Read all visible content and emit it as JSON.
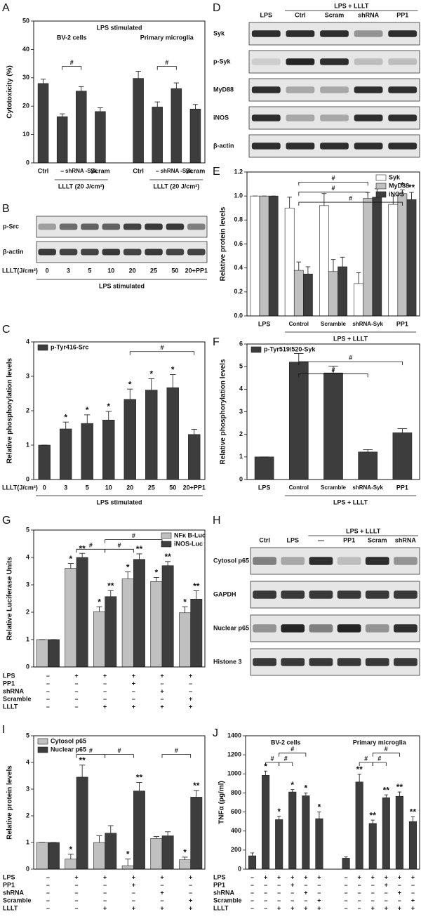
{
  "chart_data": [
    {
      "panel": "A",
      "type": "bar",
      "title": "LPS stimulated",
      "y_label": "Cytotoxicity (%)",
      "ylim": [
        0,
        50
      ],
      "yticks": [
        0,
        10,
        20,
        30,
        40,
        50
      ],
      "groups": [
        "BV-2 cells",
        "Primary microglia"
      ],
      "categories": [
        "Ctrl",
        "–",
        "shRNA -Syk",
        "Scram",
        "Ctrl",
        "–",
        "shRNA -Syk",
        "Scram"
      ],
      "group_notes": [
        "LLLT (20 J/cm²)",
        "LLLT (20 J/cm²)"
      ],
      "series": [
        {
          "color": "#3d3d3d",
          "values": [
            28,
            16.3,
            25.3,
            18.1,
            29.8,
            19.7,
            26.2,
            19.0
          ],
          "errors": [
            1.5,
            1.0,
            1.6,
            1.3,
            2.5,
            1.8,
            2.0,
            1.6
          ]
        }
      ],
      "annotations": [
        "#",
        "#"
      ]
    },
    {
      "panel": "B",
      "type": "blot",
      "rows": [
        "p-Src",
        "β-actin"
      ],
      "x_prefix": "LLLT(J/cm²)",
      "lanes": [
        "0",
        "3",
        "5",
        "10",
        "20",
        "25",
        "50",
        "20+PP1"
      ],
      "x_label": "LPS stimulated"
    },
    {
      "panel": "C",
      "type": "bar",
      "y_label": "Relative phosphorylation levels",
      "ylim": [
        0,
        4
      ],
      "yticks": [
        0,
        1,
        2,
        3,
        4
      ],
      "legend": "upper left",
      "x_prefix": "LLLT(J/cm²)",
      "categories": [
        "0",
        "3",
        "5",
        "10",
        "20",
        "25",
        "50",
        "20+PP1"
      ],
      "x_label": "LPS stimulated",
      "series": [
        {
          "name": "p-Tyr416-Src",
          "color": "#3d3d3d",
          "values": [
            1,
            1.47,
            1.63,
            1.73,
            2.33,
            2.6,
            2.67,
            1.31
          ],
          "errors": [
            0,
            0.2,
            0.25,
            0.25,
            0.3,
            0.33,
            0.38,
            0.15
          ],
          "stars": [
            null,
            "*",
            "*",
            "*",
            "*",
            "*",
            "*",
            null
          ]
        }
      ],
      "annotations": [
        "#"
      ]
    },
    {
      "panel": "D",
      "type": "blot",
      "header": "LPS + LLLT",
      "lanes": [
        "LPS",
        "Ctrl",
        "Scram",
        "shRNA",
        "PP1"
      ],
      "rows": [
        "Syk",
        "p-Syk",
        "MyD88",
        "iNOS",
        "β-actin"
      ]
    },
    {
      "panel": "E",
      "type": "bar",
      "y_label": "Relative protein levels",
      "ylim": [
        0,
        1.2
      ],
      "yticks": [
        {
          "value": 0,
          "label": "0.0"
        },
        {
          "value": 0.2,
          "label": "0.2"
        },
        {
          "value": 0.4,
          "label": "0.4"
        },
        {
          "value": 0.6,
          "label": "0.6"
        },
        {
          "value": 0.8,
          "label": "0.8"
        },
        {
          "value": 1,
          "label": "1.0"
        },
        {
          "value": 1.2,
          "label": "1.2"
        }
      ],
      "legend": "upper right",
      "categories": [
        "LPS",
        "Control",
        "Scramble",
        "shRNA-Syk",
        "PP1"
      ],
      "x_label": "LPS + LLLT",
      "series": [
        {
          "name": "Syk",
          "color": "#ffffff",
          "values": [
            1,
            0.9,
            0.92,
            0.27,
            0.93
          ],
          "errors": [
            0,
            0.09,
            0.1,
            0.09,
            0.07
          ]
        },
        {
          "name": "MyD88",
          "color": "#c0c0c0",
          "values": [
            1,
            0.38,
            0.37,
            0.98,
            1.02
          ],
          "errors": [
            0,
            0.07,
            0.1,
            0.05,
            0.03
          ],
          "stars": [
            null,
            null,
            null,
            null,
            "*"
          ]
        },
        {
          "name": "iNOS",
          "color": "#3d3d3d",
          "values": [
            1,
            0.35,
            0.41,
            0.99,
            0.97
          ],
          "errors": [
            0,
            0.06,
            0.08,
            0.07,
            0.06
          ],
          "stars": [
            null,
            null,
            null,
            null,
            "**"
          ]
        }
      ],
      "annotations": [
        "#",
        "#",
        "#"
      ]
    },
    {
      "panel": "F",
      "type": "bar",
      "y_label": "Relative phosphorylation levels",
      "ylim": [
        0,
        6
      ],
      "yticks": [
        0,
        1,
        2,
        3,
        4,
        5,
        6
      ],
      "legend": "upper left",
      "categories": [
        "LPS",
        "Control",
        "Scramble",
        "shRNA-Syk",
        "PP1"
      ],
      "x_label": "LPS + LLLT",
      "series": [
        {
          "name": "p-Tyr519/520-Syk",
          "color": "#3d3d3d",
          "values": [
            1,
            5.2,
            4.72,
            1.22,
            2.07
          ],
          "errors": [
            0,
            0.38,
            0.3,
            0.1,
            0.18
          ]
        }
      ],
      "annotations": [
        "#",
        "#"
      ]
    },
    {
      "panel": "G",
      "type": "bar",
      "y_label": "Relative Luciferase Units",
      "ylim": [
        0,
        5
      ],
      "yticks": [
        0,
        1,
        2,
        3,
        4,
        5
      ],
      "legend": "upper right",
      "series": [
        {
          "name": "NFκ B-Luc",
          "color": "#c0c0c0",
          "values": [
            1,
            3.6,
            2.02,
            3.22,
            3.12,
            1.98
          ],
          "errors": [
            0,
            0.18,
            0.18,
            0.25,
            0.15,
            0.22
          ],
          "stars": [
            null,
            "*",
            "*",
            "*",
            "*",
            "*"
          ]
        },
        {
          "name": "iNOS-Luc",
          "color": "#3d3d3d",
          "values": [
            1,
            4.0,
            2.57,
            3.93,
            3.7,
            2.48
          ],
          "errors": [
            0,
            0.15,
            0.22,
            0.2,
            0.15,
            0.3
          ],
          "stars": [
            null,
            "**",
            "**",
            "**",
            "**",
            "**"
          ]
        }
      ],
      "conditions": [
        {
          "label": "LPS",
          "signs": [
            "–",
            "+",
            "+",
            "+",
            "+",
            "+"
          ]
        },
        {
          "label": "PP1",
          "signs": [
            "–",
            "–",
            "–",
            "+",
            "–",
            "–"
          ]
        },
        {
          "label": "shRNA",
          "signs": [
            "–",
            "–",
            "–",
            "–",
            "+",
            "–"
          ]
        },
        {
          "label": "Scramble",
          "signs": [
            "–",
            "–",
            "–",
            "–",
            "–",
            "+"
          ]
        },
        {
          "label": "LLLT",
          "signs": [
            "–",
            "–",
            "+",
            "+",
            "+",
            "+"
          ]
        }
      ],
      "annotations": [
        "#",
        "#",
        "#"
      ]
    },
    {
      "panel": "H",
      "type": "blot",
      "header": "LPS + LLLT",
      "lanes": [
        "Ctrl",
        "LPS",
        "—",
        "PP1",
        "Scram",
        "shRNA"
      ],
      "rows": [
        "Cytosol p65",
        "GAPDH",
        "Nuclear p65",
        "Histone 3"
      ]
    },
    {
      "panel": "I",
      "type": "bar",
      "y_label": "Relative protein levels",
      "ylim": [
        0,
        5
      ],
      "yticks": [
        0,
        1,
        2,
        3,
        4,
        5
      ],
      "legend": "upper left",
      "series": [
        {
          "name": "Cytosol p65",
          "color": "#c0c0c0",
          "values": [
            1,
            0.38,
            1.0,
            0.13,
            1.15,
            0.35
          ],
          "errors": [
            0,
            0.18,
            0.25,
            0.25,
            0.07,
            0.1
          ],
          "stars": [
            null,
            "*",
            null,
            "*",
            null,
            "*"
          ]
        },
        {
          "name": "Nuclear p65",
          "color": "#3d3d3d",
          "values": [
            1,
            3.45,
            1.35,
            2.93,
            1.25,
            2.7
          ],
          "errors": [
            0,
            0.45,
            0.28,
            0.32,
            0.15,
            0.25
          ],
          "stars": [
            null,
            "**",
            null,
            "**",
            null,
            "**"
          ]
        }
      ],
      "conditions": [
        {
          "label": "LPS",
          "signs": [
            "–",
            "+",
            "+",
            "+",
            "+",
            "+"
          ]
        },
        {
          "label": "PP1",
          "signs": [
            "–",
            "–",
            "–",
            "+",
            "–",
            "–"
          ]
        },
        {
          "label": "shRNA",
          "signs": [
            "–",
            "–",
            "–",
            "–",
            "+",
            "–"
          ]
        },
        {
          "label": "Scramble",
          "signs": [
            "–",
            "–",
            "–",
            "–",
            "–",
            "+"
          ]
        },
        {
          "label": "LLLT",
          "signs": [
            "–",
            "–",
            "+",
            "+",
            "+",
            "+"
          ]
        }
      ],
      "annotations": [
        "#",
        "#",
        "#"
      ]
    },
    {
      "panel": "J",
      "type": "bar",
      "y_label": "TNFα (pg/ml)",
      "ylim": [
        0,
        1400
      ],
      "yticks": [
        0,
        200,
        400,
        600,
        800,
        1000,
        1200,
        1400
      ],
      "groups": [
        "BV-2 cells",
        "Primary microglia"
      ],
      "series": [
        {
          "color": "#3d3d3d",
          "values": [
            140,
            985,
            520,
            810,
            770,
            530,
            115,
            915,
            480,
            750,
            765,
            500
          ],
          "errors": [
            30,
            45,
            35,
            25,
            30,
            70,
            15,
            80,
            35,
            30,
            45,
            50
          ],
          "stars": [
            null,
            "*",
            "*",
            "*",
            "*",
            "*",
            null,
            "**",
            "**",
            "**",
            "**",
            "**"
          ]
        }
      ],
      "conditions": [
        {
          "label": "LPS",
          "signs": [
            "–",
            "+",
            "+",
            "+",
            "+",
            "+",
            "–",
            "+",
            "+",
            "+",
            "+",
            "+"
          ]
        },
        {
          "label": "PP1",
          "signs": [
            "–",
            "–",
            "–",
            "+",
            "–",
            "–",
            "–",
            "–",
            "–",
            "+",
            "–",
            "–"
          ]
        },
        {
          "label": "shRNA",
          "signs": [
            "–",
            "–",
            "–",
            "–",
            "+",
            "–",
            "–",
            "–",
            "–",
            "–",
            "+",
            "–"
          ]
        },
        {
          "label": "Scramble",
          "signs": [
            "–",
            "–",
            "–",
            "–",
            "–",
            "+",
            "–",
            "–",
            "–",
            "–",
            "–",
            "+"
          ]
        },
        {
          "label": "LLLT",
          "signs": [
            "–",
            "–",
            "+",
            "+",
            "+",
            "+",
            "–",
            "–",
            "+",
            "+",
            "+",
            "+"
          ]
        }
      ],
      "annotations": [
        "#",
        "#",
        "#",
        "#",
        "#",
        "#"
      ]
    }
  ]
}
